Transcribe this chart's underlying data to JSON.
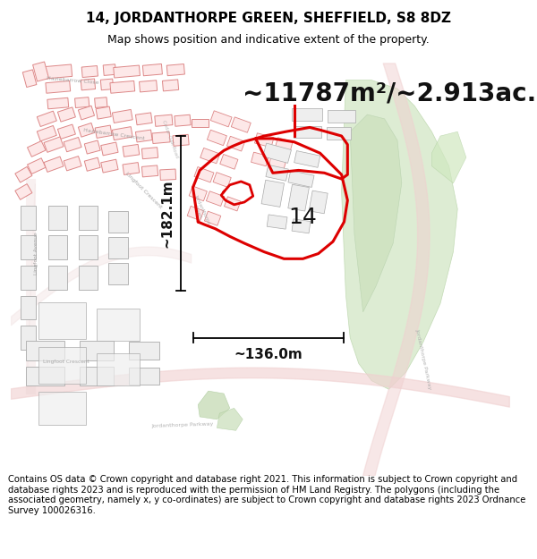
{
  "title": "14, JORDANTHORPE GREEN, SHEFFIELD, S8 8DZ",
  "subtitle": "Map shows position and indicative extent of the property.",
  "area_text": "~11787m²/~2.913ac.",
  "label_14": "14",
  "dim_vertical": "~182.1m",
  "dim_horizontal": "~136.0m",
  "footer": "Contains OS data © Crown copyright and database right 2021. This information is subject to Crown copyright and database rights 2023 and is reproduced with the permission of HM Land Registry. The polygons (including the associated geometry, namely x, y co-ordinates) are subject to Crown copyright and database rights 2023 Ordnance Survey 100026316.",
  "bg_color": "#ffffff",
  "map_bg": "#ffffff",
  "red_outline": "#dd0000",
  "green_area_dark": "#c5dbb8",
  "green_area_light": "#e0ede0",
  "road_color": "#f5c8c8",
  "building_red_fill": "#fde8e8",
  "building_red_edge": "#dd8888",
  "building_gray_fill": "#eeeeee",
  "building_gray_edge": "#aaaaaa",
  "title_fontsize": 11,
  "subtitle_fontsize": 9,
  "area_fontsize": 20,
  "label_fontsize": 18,
  "dim_fontsize": 11,
  "footer_fontsize": 7.2
}
